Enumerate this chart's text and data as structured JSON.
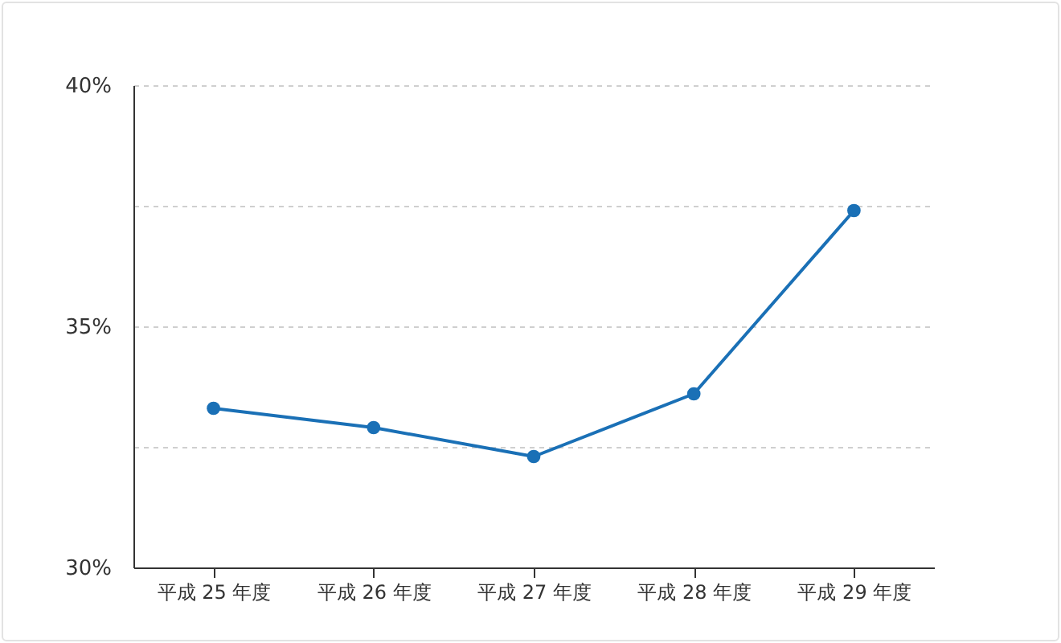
{
  "chart_data": {
    "type": "line",
    "categories": [
      "平成 25 年度",
      "平成 26 年度",
      "平成 27 年度",
      "平成 28 年度",
      "平成 29 年度"
    ],
    "series": [
      {
        "color": "#1a70b6",
        "values": [
          33.3,
          32.9,
          32.3,
          33.6,
          37.4
        ]
      }
    ],
    "ylim": [
      30,
      40
    ],
    "yticks": [
      {
        "value": 30,
        "label": "30%"
      },
      {
        "value": 32.5,
        "label": null
      },
      {
        "value": 35,
        "label": "35%"
      },
      {
        "value": 37.5,
        "label": null
      },
      {
        "value": 40,
        "label": "40%"
      }
    ],
    "grid": "y",
    "marker": "circle",
    "line_style": "solid",
    "legend": false
  }
}
